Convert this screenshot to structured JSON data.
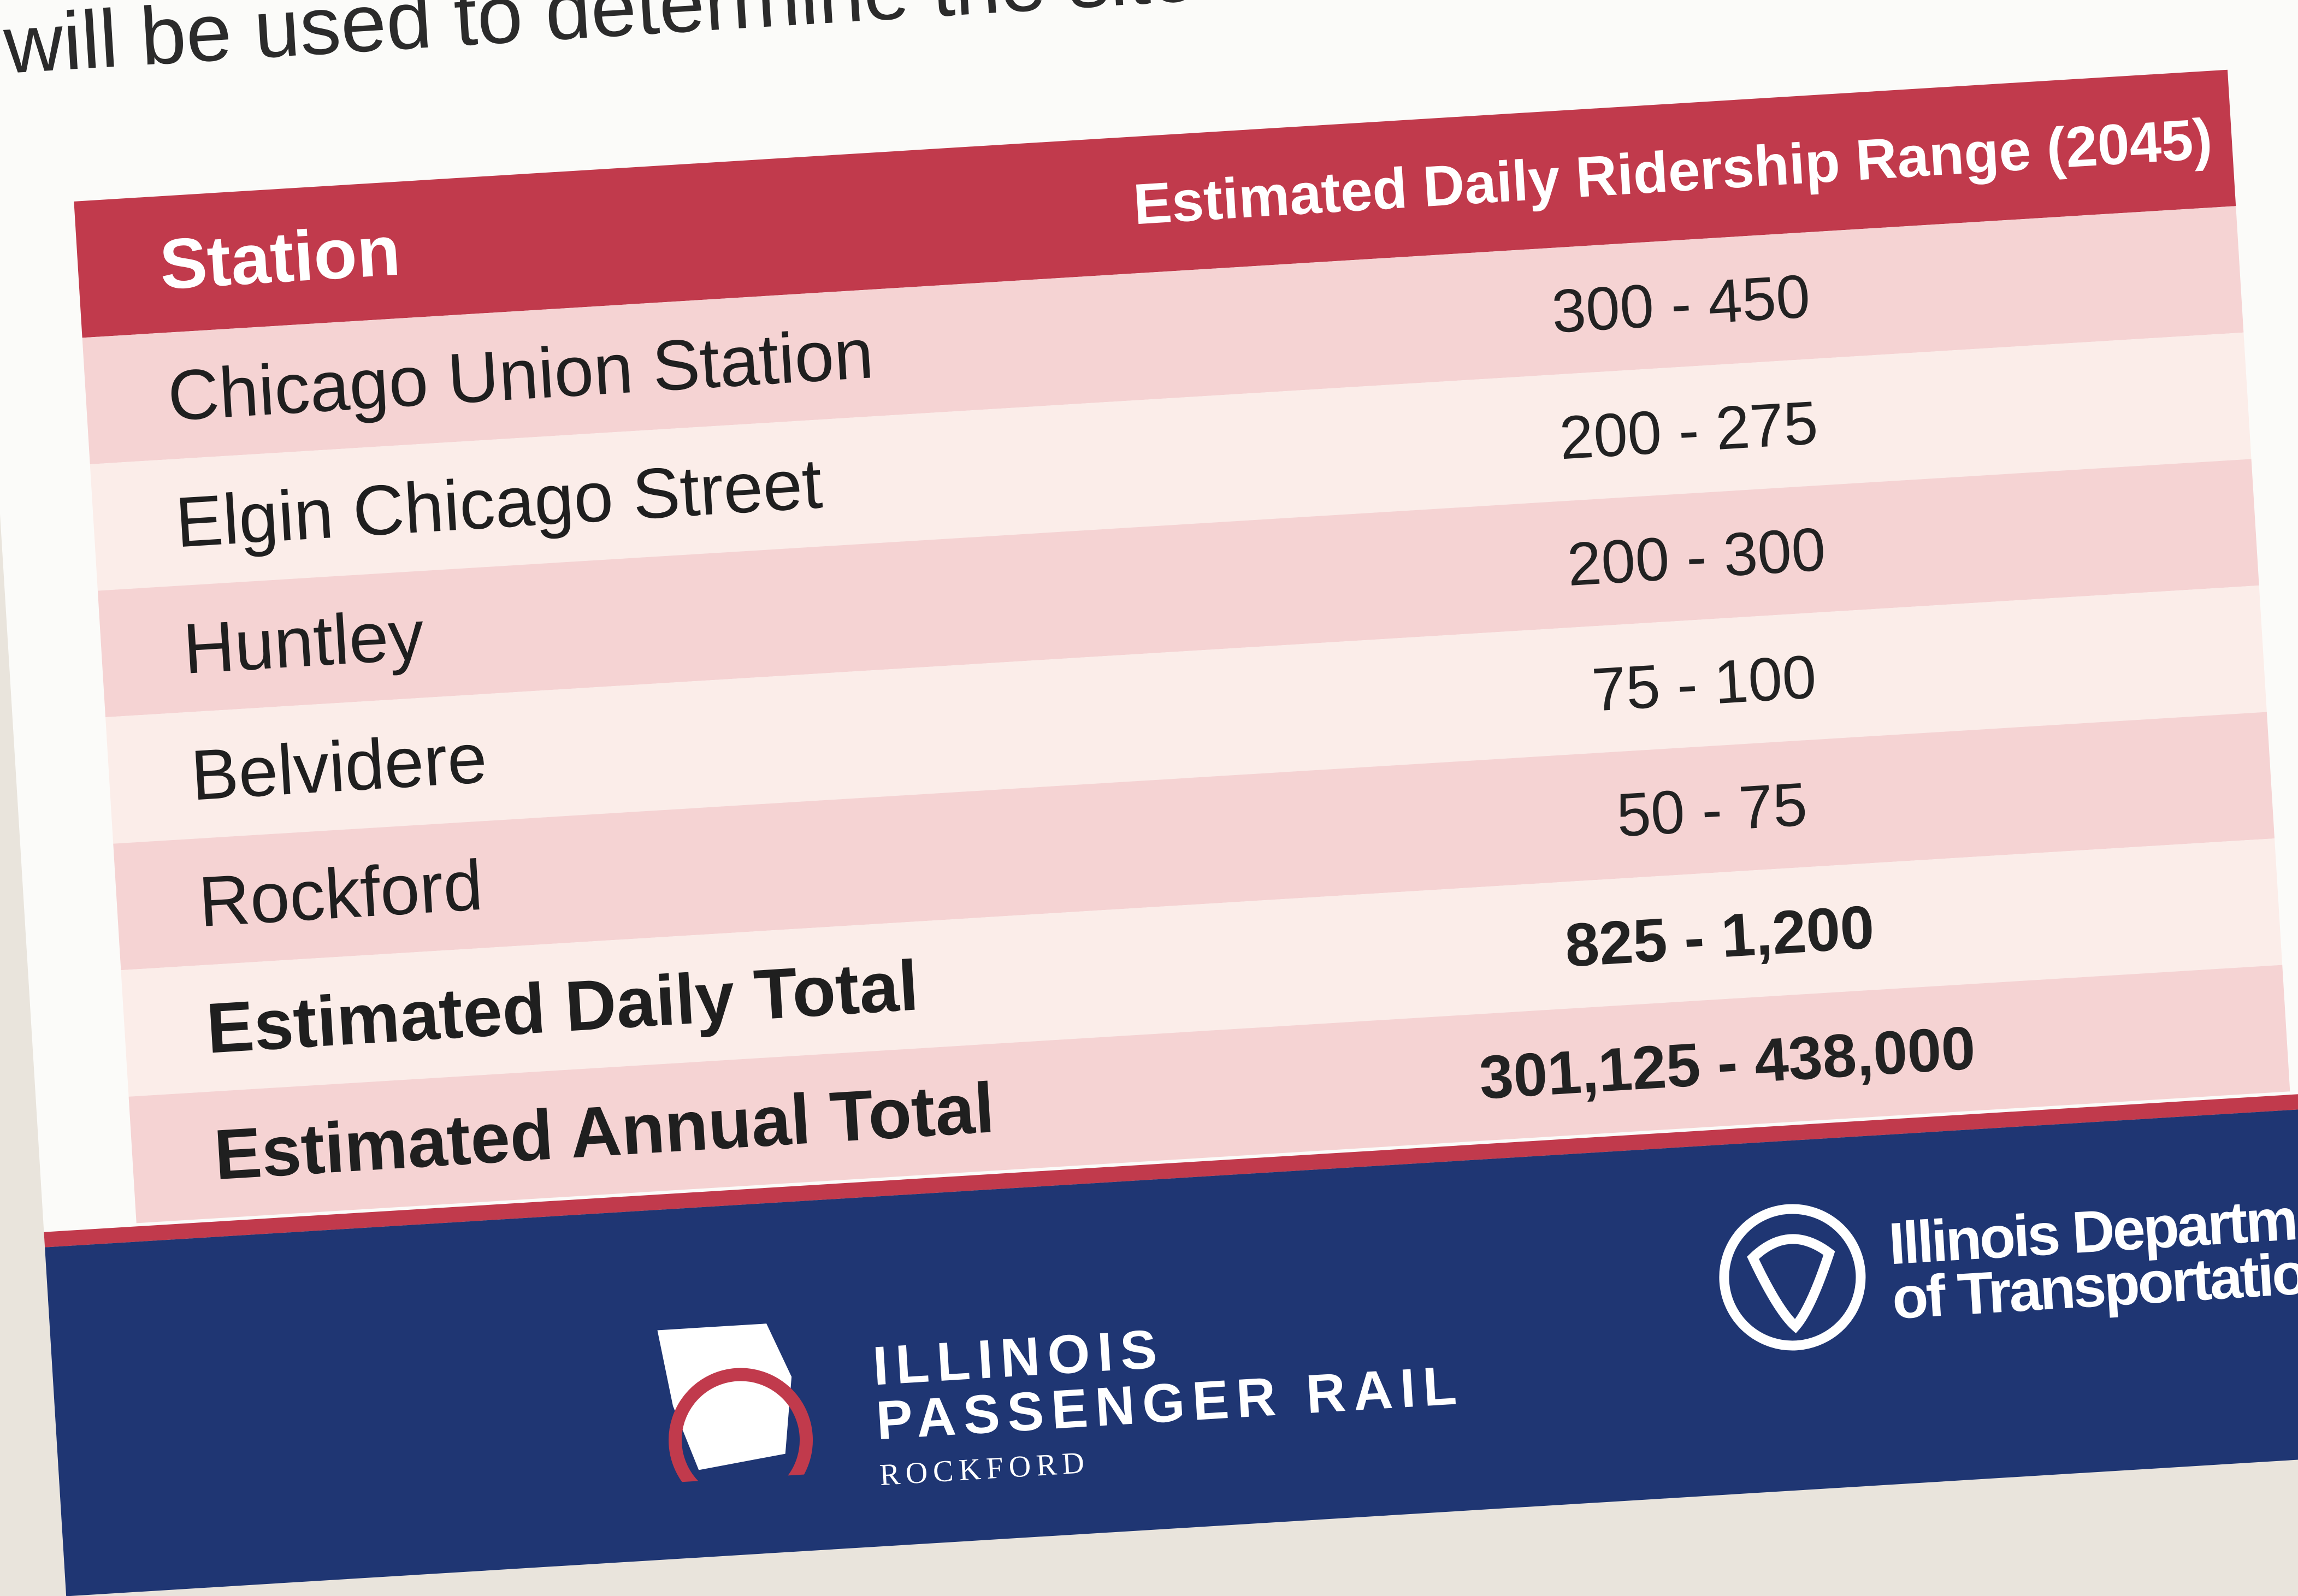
{
  "header": {
    "text": "will be used to determine the site amenities for each proposed stati"
  },
  "table": {
    "columns": [
      "Station",
      "Estimated Daily Ridership Range (2045)"
    ],
    "rows": [
      [
        "Chicago Union Station",
        "300 - 450"
      ],
      [
        "Elgin Chicago Street",
        "200 - 275"
      ],
      [
        "Huntley",
        "200 - 300"
      ],
      [
        "Belvidere",
        "75 - 100"
      ],
      [
        "Rockford",
        "50 - 75"
      ],
      [
        "Estimated Daily Total",
        "825 - 1,200"
      ],
      [
        "Estimated Annual Total",
        "301,125 - 438,000"
      ]
    ],
    "bold_rows": [
      5,
      6
    ]
  },
  "footer": {
    "rail_logo": {
      "line1": "ILLINOIS",
      "line2": "PASSENGER RAIL",
      "line3": "ROCKFORD"
    },
    "idot_logo": {
      "line1": "Illinois Department",
      "line2": "of Transportation"
    }
  }
}
